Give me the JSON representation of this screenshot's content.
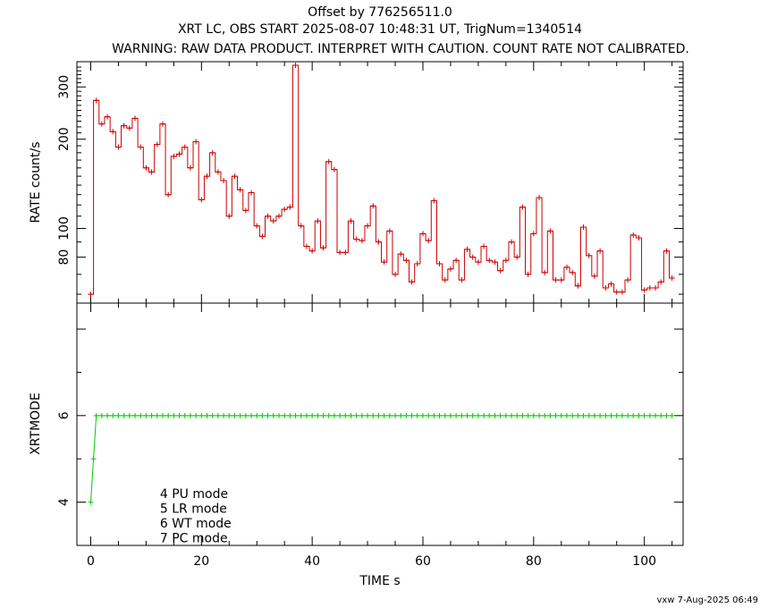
{
  "header": {
    "line1": "Offset by 776256511.0",
    "line2": "XRT LC, OBS START 2025-08-07 10:48:31 UT, TrigNum=1340514",
    "line3": "WARNING: RAW DATA PRODUCT. INTERPRET WITH CAUTION. COUNT RATE NOT CALIBRATED."
  },
  "footer": {
    "stamp": "vxw  7-Aug-2025 06:49"
  },
  "colors": {
    "rate": "#cc0000",
    "mode": "#00cc00",
    "axes": "#000000"
  },
  "chart_data": [
    {
      "type": "line",
      "ylabel": "RATE  count/s",
      "xlim": [
        -2.5,
        107
      ],
      "ylim": [
        56,
        365
      ],
      "y_scale": "log",
      "yticks": [
        80,
        100,
        200,
        300
      ],
      "ytick_labels": [
        "80",
        "100",
        "200",
        "300"
      ],
      "xticks": [
        0,
        20,
        40,
        60,
        80,
        100
      ],
      "grid": false,
      "series": [
        {
          "step": "mid",
          "x": [
            0,
            1,
            2,
            3,
            4,
            5,
            6,
            7,
            8,
            9,
            10,
            11,
            12,
            13,
            14,
            15,
            16,
            17,
            18,
            19,
            20,
            21,
            22,
            23,
            24,
            25,
            26,
            27,
            28,
            29,
            30,
            31,
            32,
            33,
            34,
            35,
            36,
            37,
            38,
            39,
            40,
            41,
            42,
            43,
            44,
            45,
            46,
            47,
            48,
            49,
            50,
            51,
            52,
            53,
            54,
            55,
            56,
            57,
            58,
            59,
            60,
            61,
            62,
            63,
            64,
            65,
            66,
            67,
            68,
            69,
            70,
            71,
            72,
            73,
            74,
            75,
            76,
            77,
            78,
            79,
            80,
            81,
            82,
            83,
            84,
            85,
            86,
            87,
            88,
            89,
            90,
            91,
            92,
            93,
            94,
            95,
            96,
            97,
            98,
            99,
            100,
            101,
            102,
            103,
            104,
            105
          ],
          "y": [
            60,
            270,
            225,
            238,
            212,
            188,
            222,
            218,
            235,
            188,
            160,
            155,
            192,
            225,
            130,
            175,
            178,
            188,
            160,
            196,
            125,
            150,
            180,
            155,
            145,
            110,
            150,
            135,
            115,
            132,
            102,
            94,
            110,
            106,
            110,
            116,
            118,
            355,
            102,
            87,
            84,
            106,
            86,
            168,
            158,
            83,
            83,
            106,
            92,
            91,
            102,
            119,
            90,
            77,
            98,
            70,
            82,
            78,
            66,
            76,
            96,
            91,
            124,
            76,
            67,
            73,
            78,
            67,
            85,
            80,
            77,
            87,
            78,
            77,
            72,
            78,
            90,
            80,
            118,
            70,
            96,
            127,
            71,
            98,
            67,
            67,
            74,
            71,
            64,
            101,
            81,
            69,
            84,
            63,
            65,
            61,
            61,
            67,
            95,
            93,
            62,
            63,
            63,
            66,
            84,
            68
          ]
        }
      ]
    },
    {
      "type": "line",
      "ylabel": "XRTMODE",
      "xlabel": "TIME  s",
      "xlim": [
        -2.5,
        107
      ],
      "ylim": [
        3,
        8.6
      ],
      "yticks": [
        4,
        6
      ],
      "ytick_labels": [
        "4",
        "6"
      ],
      "xticks": [
        0,
        20,
        40,
        60,
        80,
        100
      ],
      "xtick_labels": [
        "0",
        "20",
        "40",
        "60",
        "80",
        "100"
      ],
      "grid": false,
      "legend": [
        "4 PU mode",
        "5 LR mode",
        "6 WT mode",
        "7 PC mode"
      ],
      "legend_anchor": [
        12.5,
        4.1
      ],
      "series": [
        {
          "x": [
            0,
            0.5,
            1,
            2,
            3,
            4,
            5,
            6,
            7,
            8,
            9,
            10,
            11,
            12,
            13,
            14,
            15,
            16,
            17,
            18,
            19,
            20,
            21,
            22,
            23,
            24,
            25,
            26,
            27,
            28,
            29,
            30,
            31,
            32,
            33,
            34,
            35,
            36,
            37,
            38,
            39,
            40,
            41,
            42,
            43,
            44,
            45,
            46,
            47,
            48,
            49,
            50,
            51,
            52,
            53,
            54,
            55,
            56,
            57,
            58,
            59,
            60,
            61,
            62,
            63,
            64,
            65,
            66,
            67,
            68,
            69,
            70,
            71,
            72,
            73,
            74,
            75,
            76,
            77,
            78,
            79,
            80,
            81,
            82,
            83,
            84,
            85,
            86,
            87,
            88,
            89,
            90,
            91,
            92,
            93,
            94,
            95,
            96,
            97,
            98,
            99,
            100,
            101,
            102,
            103,
            104,
            105
          ],
          "y": [
            4,
            5,
            6,
            6,
            6,
            6,
            6,
            6,
            6,
            6,
            6,
            6,
            6,
            6,
            6,
            6,
            6,
            6,
            6,
            6,
            6,
            6,
            6,
            6,
            6,
            6,
            6,
            6,
            6,
            6,
            6,
            6,
            6,
            6,
            6,
            6,
            6,
            6,
            6,
            6,
            6,
            6,
            6,
            6,
            6,
            6,
            6,
            6,
            6,
            6,
            6,
            6,
            6,
            6,
            6,
            6,
            6,
            6,
            6,
            6,
            6,
            6,
            6,
            6,
            6,
            6,
            6,
            6,
            6,
            6,
            6,
            6,
            6,
            6,
            6,
            6,
            6,
            6,
            6,
            6,
            6,
            6,
            6,
            6,
            6,
            6,
            6,
            6,
            6,
            6,
            6,
            6,
            6,
            6,
            6,
            6,
            6,
            6,
            6,
            6,
            6,
            6,
            6,
            6,
            6,
            6,
            6
          ]
        }
      ]
    }
  ]
}
